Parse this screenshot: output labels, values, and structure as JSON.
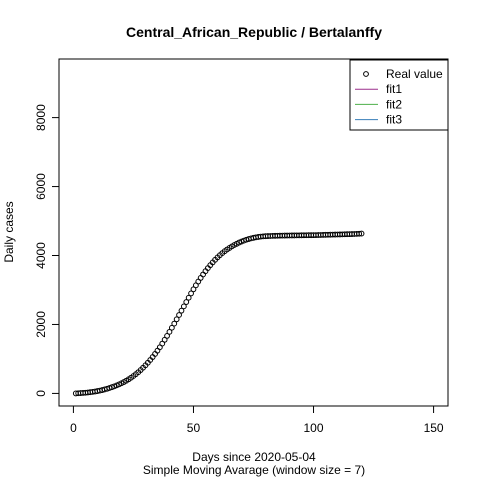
{
  "chart_data": {
    "type": "scatter",
    "title": "Central_African_Republic / Bertalanffy",
    "xlabel": "Days since 2020-05-04",
    "xlabel_sub": "Simple Moving Avarage (window size = 7)",
    "ylabel": "Daily cases",
    "xlim": [
      -6,
      156
    ],
    "ylim": [
      -365,
      9700
    ],
    "x_ticks": [
      0,
      50,
      100,
      150
    ],
    "y_ticks": [
      0,
      2000,
      4000,
      6000,
      8000
    ],
    "grid": false,
    "legend_position": "top-right",
    "legend": [
      {
        "label": "Real value",
        "kind": "point",
        "color": "#000000"
      },
      {
        "label": "fit1",
        "kind": "line",
        "color": "#9b2f8b"
      },
      {
        "label": "fit2",
        "kind": "line",
        "color": "#4daf4a"
      },
      {
        "label": "fit3",
        "kind": "line",
        "color": "#377eb8"
      }
    ],
    "series": [
      {
        "name": "Real value",
        "x": [
          1,
          2,
          3,
          4,
          5,
          6,
          7,
          8,
          9,
          10,
          11,
          12,
          13,
          14,
          15,
          16,
          17,
          18,
          19,
          20,
          21,
          22,
          23,
          24,
          25,
          26,
          27,
          28,
          29,
          30,
          31,
          32,
          33,
          34,
          35,
          36,
          37,
          38,
          39,
          40,
          41,
          42,
          43,
          44,
          45,
          46,
          47,
          48,
          49,
          50,
          51,
          52,
          53,
          54,
          55,
          56,
          57,
          58,
          59,
          60,
          61,
          62,
          63,
          64,
          65,
          66,
          67,
          68,
          69,
          70,
          71,
          72,
          73,
          74,
          75,
          76,
          77,
          78,
          79,
          80,
          81,
          82,
          83,
          84,
          85,
          86,
          87,
          88,
          89,
          90,
          91,
          92,
          93,
          94,
          95,
          96,
          97,
          98,
          99,
          100,
          101,
          102,
          103,
          104,
          105,
          106,
          107,
          108,
          109,
          110,
          111,
          112,
          113,
          114,
          115,
          116,
          117,
          118,
          119,
          120
        ],
        "y": [
          0,
          5,
          10,
          15,
          20,
          27,
          35,
          45,
          55,
          68,
          82,
          98,
          115,
          135,
          157,
          180,
          205,
          233,
          262,
          295,
          330,
          368,
          410,
          455,
          505,
          558,
          615,
          678,
          745,
          815,
          890,
          970,
          1055,
          1145,
          1240,
          1340,
          1445,
          1555,
          1668,
          1785,
          1905,
          2025,
          2150,
          2275,
          2400,
          2525,
          2650,
          2775,
          2900,
          3020,
          3135,
          3245,
          3350,
          3450,
          3545,
          3635,
          3720,
          3800,
          3875,
          3945,
          4010,
          4070,
          4125,
          4175,
          4220,
          4265,
          4305,
          4340,
          4375,
          4405,
          4432,
          4457,
          4478,
          4497,
          4513,
          4527,
          4539,
          4548,
          4555,
          4560,
          4564,
          4567,
          4570,
          4572,
          4574,
          4576,
          4577,
          4579,
          4580,
          4581,
          4582,
          4583,
          4584,
          4585,
          4586,
          4587,
          4588,
          4589,
          4590,
          4591,
          4592,
          4594,
          4596,
          4598,
          4600,
          4602,
          4604,
          4606,
          4608,
          4610,
          4612,
          4614,
          4616,
          4618,
          4620,
          4622,
          4625,
          4628,
          4632,
          4636
        ]
      }
    ]
  }
}
